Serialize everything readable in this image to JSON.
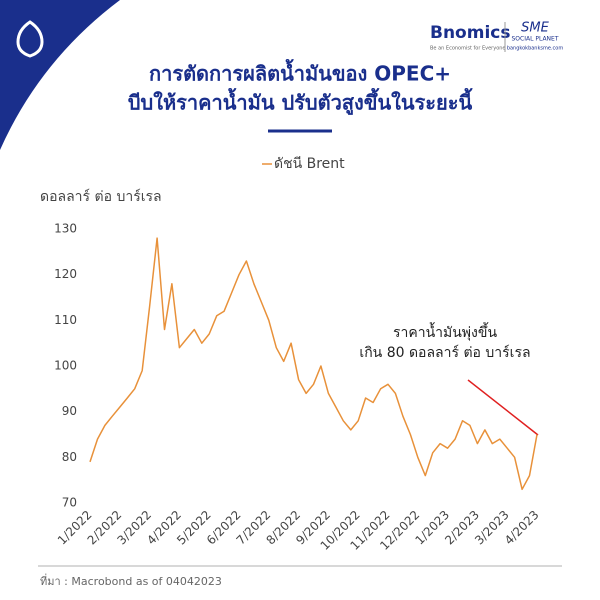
{
  "header": {
    "brand": "Bnomics",
    "tagline": "Be an Economist for Everyone",
    "partner": "SME",
    "partner_sub": "SOCIAL PLANET",
    "partner_url": "bangkokbanksme.com"
  },
  "chart_data": {
    "type": "line",
    "title": [
      "การตัดการผลิตน้ำมันของ OPEC+",
      "บีบให้ราคาน้ำมัน ปรับตัวสูงขึ้นในระยะนี้"
    ],
    "y_label": "ดอลลาร์ ต่อ บาร์เรล",
    "annotation": [
      "ราคาน้ำมันพุ่งขึ้น",
      "เกิน 80 ดอลลาร์ ต่อ บาร์เรล"
    ],
    "categories": [
      "1/2022",
      null,
      null,
      null,
      "2/2022",
      null,
      null,
      null,
      "3/2022",
      null,
      null,
      null,
      "4/2022",
      null,
      null,
      null,
      "5/2022",
      null,
      null,
      null,
      "6/2022",
      null,
      null,
      null,
      "7/2022",
      null,
      null,
      null,
      "8/2022",
      null,
      null,
      null,
      "9/2022",
      null,
      null,
      null,
      "10/2022",
      null,
      null,
      null,
      "11/2022",
      null,
      null,
      null,
      "12/2022",
      null,
      null,
      null,
      "1/2023",
      null,
      null,
      null,
      "2/2023",
      null,
      null,
      null,
      "3/2023",
      null,
      null,
      null,
      "4/2023"
    ],
    "series": [
      {
        "name": "ดัชนี Brent",
        "color": "#e8913a",
        "values": [
          79,
          84,
          87,
          89,
          91,
          93,
          95,
          99,
          113,
          128,
          108,
          118,
          104,
          106,
          108,
          105,
          107,
          111,
          112,
          116,
          120,
          123,
          118,
          114,
          110,
          104,
          101,
          105,
          97,
          94,
          96,
          100,
          94,
          91,
          88,
          86,
          88,
          93,
          92,
          95,
          96,
          94,
          89,
          85,
          80,
          76,
          81,
          83,
          82,
          84,
          88,
          87,
          83,
          86,
          83,
          84,
          82,
          80,
          73,
          76,
          85
        ]
      }
    ],
    "ylim": [
      70,
      130
    ],
    "yticks": [
      70,
      80,
      90,
      100,
      110,
      120,
      130
    ],
    "grid": false
  },
  "source": "ที่มา : Macrobond  as of 04042023"
}
